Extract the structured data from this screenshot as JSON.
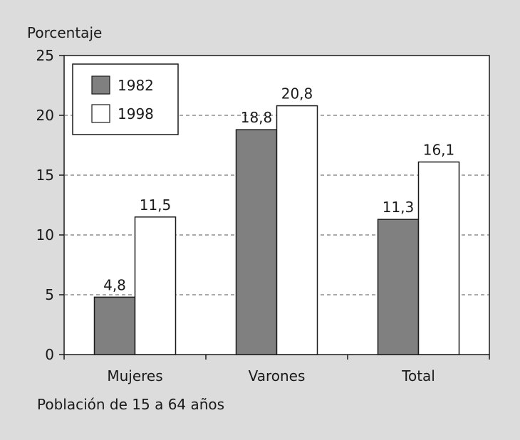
{
  "chart_data": {
    "type": "bar",
    "ylabel": "Porcentaje",
    "xlabel": "Población de 15 a 64 años",
    "categories": [
      "Mujeres",
      "Varones",
      "Total"
    ],
    "ylim": [
      0,
      25
    ],
    "yticks": [
      0,
      5,
      10,
      15,
      20,
      25
    ],
    "grid": true,
    "legend_position": "top-left",
    "series": [
      {
        "name": "1982",
        "values": [
          4.8,
          18.8,
          11.3
        ],
        "labels": [
          "4,8",
          "18,8",
          "11,3"
        ],
        "color": "#808080"
      },
      {
        "name": "1998",
        "values": [
          11.5,
          20.8,
          16.1
        ],
        "labels": [
          "11,5",
          "20,8",
          "16,1"
        ],
        "color": "#ffffff"
      }
    ],
    "background_color": "#dcdcdc",
    "plot_background_color": "#ffffff"
  }
}
